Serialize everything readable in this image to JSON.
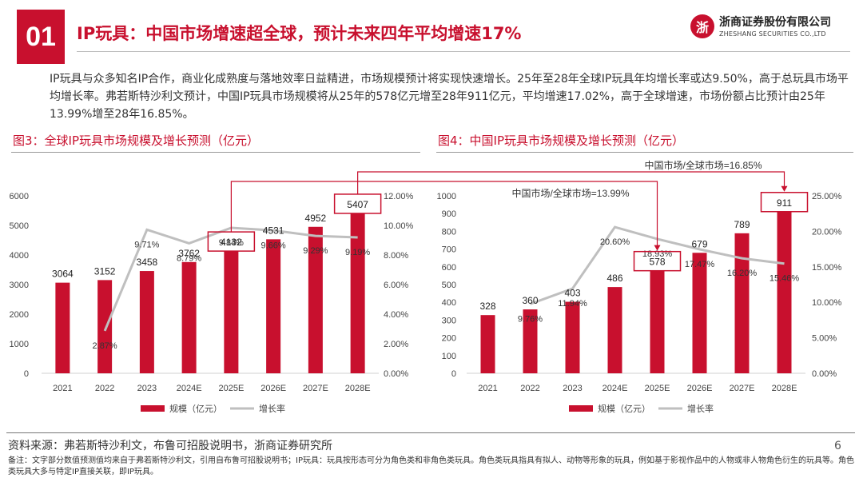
{
  "header": {
    "section_number": "01",
    "title": "IP玩具：中国市场增速超全球，预计未来四年平均增速17%",
    "logo_cn": "浙商证券股份有限公司",
    "logo_en": "ZHESHANG SECURITIES CO.,LTD",
    "logo_mark": "浙"
  },
  "summary": "IP玩具与众多知名IP合作，商业化成熟度与落地效率日益精进，市场规模预计将实现快速增长。25年至28年全球IP玩具年均增长率或达9.50%，高于总玩具市场平均增长率。弗若斯特沙利文预计，中国IP玩具市场规模将从25年的578亿元增至28年911亿元，平均增速17.02%，高于全球增速，市场份额占比预计由25年13.99%增至28年16.85%。",
  "colors": {
    "accent": "#c8102e",
    "line": "#bfbfbf",
    "bar": "#c8102e"
  },
  "chart_data": [
    {
      "type": "bar",
      "title": "图3：全球IP玩具市场规模及增长预测（亿元）",
      "categories": [
        "2021",
        "2022",
        "2023",
        "2024E",
        "2025E",
        "2026E",
        "2027E",
        "2028E"
      ],
      "series": [
        {
          "name": "规模（亿元）",
          "type": "bar",
          "axis": "left",
          "values": [
            3064,
            3152,
            3458,
            3762,
            4132,
            4531,
            4952,
            5407
          ]
        },
        {
          "name": "增长率",
          "type": "line",
          "axis": "right",
          "values": [
            null,
            2.87,
            9.71,
            8.79,
            9.84,
            9.66,
            9.29,
            9.19
          ],
          "labels": [
            "",
            "2.87%",
            "9.71%",
            "8.79%",
            "9.84%",
            "9.66%",
            "9.29%",
            "9.19%"
          ]
        }
      ],
      "ylim": [
        0,
        6000
      ],
      "yticks": [
        "0",
        "1000",
        "2000",
        "3000",
        "4000",
        "5000",
        "6000"
      ],
      "y2lim": [
        0,
        12
      ],
      "y2ticks": [
        "0.00%",
        "2.00%",
        "4.00%",
        "6.00%",
        "8.00%",
        "10.00%",
        "12.00%"
      ],
      "highlight": [
        4,
        7
      ],
      "legend": "bottom"
    },
    {
      "type": "bar",
      "title": "图4：中国IP玩具市场规模及增长预测（亿元）",
      "categories": [
        "2021",
        "2022",
        "2023",
        "2024E",
        "2025E",
        "2026E",
        "2027E",
        "2028E"
      ],
      "series": [
        {
          "name": "规模（亿元）",
          "type": "bar",
          "axis": "left",
          "values": [
            328,
            360,
            403,
            486,
            578,
            679,
            789,
            911
          ]
        },
        {
          "name": "增长率",
          "type": "line",
          "axis": "right",
          "values": [
            null,
            9.76,
            11.94,
            20.6,
            18.93,
            17.47,
            16.2,
            15.46
          ],
          "labels": [
            "",
            "9.76%",
            "11.94%",
            "20.60%",
            "18.93%",
            "17.47%",
            "16.20%",
            "15.46%"
          ]
        }
      ],
      "ylim": [
        0,
        1000
      ],
      "yticks": [
        "0",
        "100",
        "200",
        "300",
        "400",
        "500",
        "600",
        "700",
        "800",
        "900",
        "1000"
      ],
      "y2lim": [
        0,
        25
      ],
      "y2ticks": [
        "0.00%",
        "5.00%",
        "10.00%",
        "15.00%",
        "20.00%",
        "25.00%"
      ],
      "highlight": [
        4,
        7
      ],
      "legend": "bottom"
    }
  ],
  "annotations": {
    "share_2025": "中国市场/全球市场=13.99%",
    "share_2028": "中国市场/全球市场=16.85%"
  },
  "source": "资料来源：弗若斯特沙利文，布鲁可招股说明书，浙商证券研究所",
  "notes": "备注：文字部分数值预测值均来自于弗若斯特沙利文，引用自布鲁可招股说明书；IP玩具：玩具按形态可分为角色类和非角色类玩具。角色类玩具指具有拟人、动物等形象的玩具，例如基于影视作品中的人物或非人物角色衍生的玩具等。角色类玩具大多与特定IP直接关联，即IP玩具。",
  "page_number": "6"
}
